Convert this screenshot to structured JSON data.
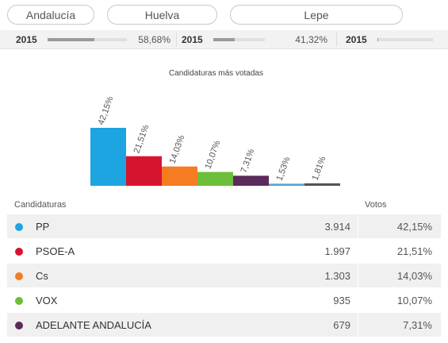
{
  "selectors": [
    {
      "label": "Andalucía"
    },
    {
      "label": "Huelva"
    },
    {
      "label": "Lepe"
    }
  ],
  "progress": [
    {
      "year": "2015",
      "value": 58.68,
      "label": "58,68%"
    },
    {
      "year": "2015",
      "value": 41.32,
      "label": "41,32%"
    },
    {
      "year": "2015",
      "value": 2,
      "label": ""
    }
  ],
  "chart_data": {
    "type": "bar",
    "title": "Candidaturas más votadas",
    "categories": [
      "PP",
      "PSOE-A",
      "Cs",
      "VOX",
      "ADELANTE ANDALUCÍA",
      "",
      ""
    ],
    "values": [
      42.15,
      21.51,
      14.03,
      10.07,
      7.31,
      1.53,
      1.81
    ],
    "labels": [
      "42,15%",
      "21,51%",
      "14,03%",
      "10,07%",
      "7,31%",
      "1,53%",
      "1,81%"
    ],
    "colors": [
      "#1ca5e0",
      "#d7142f",
      "#f57c20",
      "#6cbf3a",
      "#5a2a5a",
      "#4fa8d6",
      "#555555"
    ],
    "ylim": [
      0,
      42.15
    ]
  },
  "table": {
    "col_name": "Candidaturas",
    "col_votes": "Votos",
    "rows": [
      {
        "name": "PP",
        "votes": "3.914",
        "pct": "42,15%",
        "color": "#1ca5e0"
      },
      {
        "name": "PSOE-A",
        "votes": "1.997",
        "pct": "21,51%",
        "color": "#d7142f"
      },
      {
        "name": "Cs",
        "votes": "1.303",
        "pct": "14,03%",
        "color": "#f57c20"
      },
      {
        "name": "VOX",
        "votes": "935",
        "pct": "10,07%",
        "color": "#6cbf3a"
      },
      {
        "name": "ADELANTE ANDALUCÍA",
        "votes": "679",
        "pct": "7,31%",
        "color": "#5a2a5a"
      }
    ]
  }
}
